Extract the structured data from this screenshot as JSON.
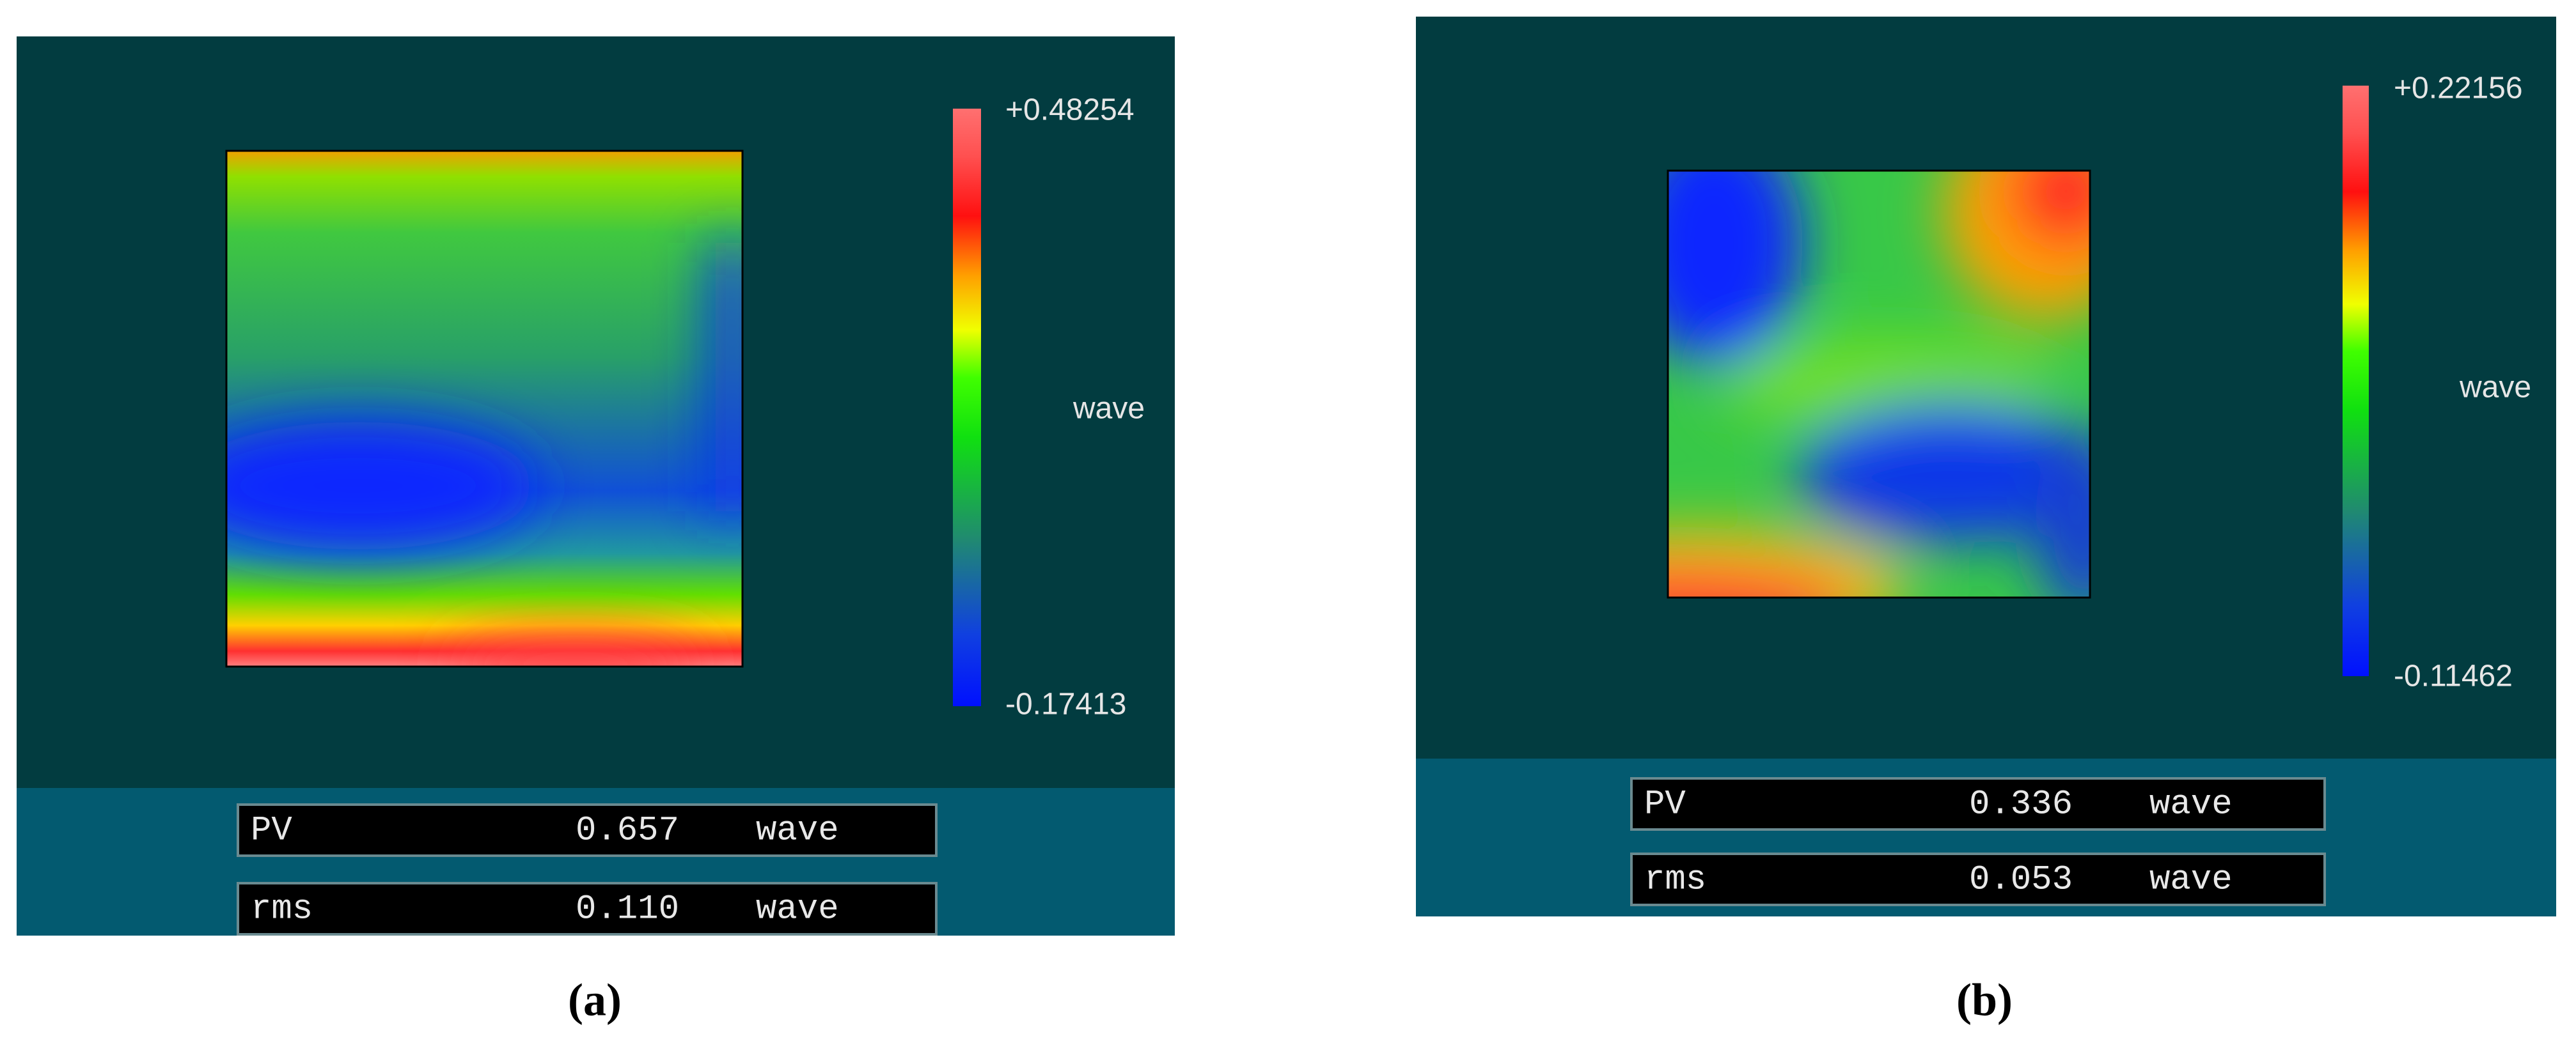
{
  "panels": [
    {
      "scale": {
        "max": "+0.48254",
        "unit": "wave",
        "min": "-0.17413"
      },
      "stats": [
        {
          "label": "PV",
          "value": "0.657",
          "unit": "wave"
        },
        {
          "label": "rms",
          "value": "0.110",
          "unit": "wave"
        }
      ],
      "caption": "(a)"
    },
    {
      "scale": {
        "max": "+0.22156",
        "unit": "wave",
        "min": "-0.11462"
      },
      "stats": [
        {
          "label": "PV",
          "value": "0.336",
          "unit": "wave"
        },
        {
          "label": "rms",
          "value": "0.053",
          "unit": "wave"
        }
      ],
      "caption": "(b)"
    }
  ]
}
